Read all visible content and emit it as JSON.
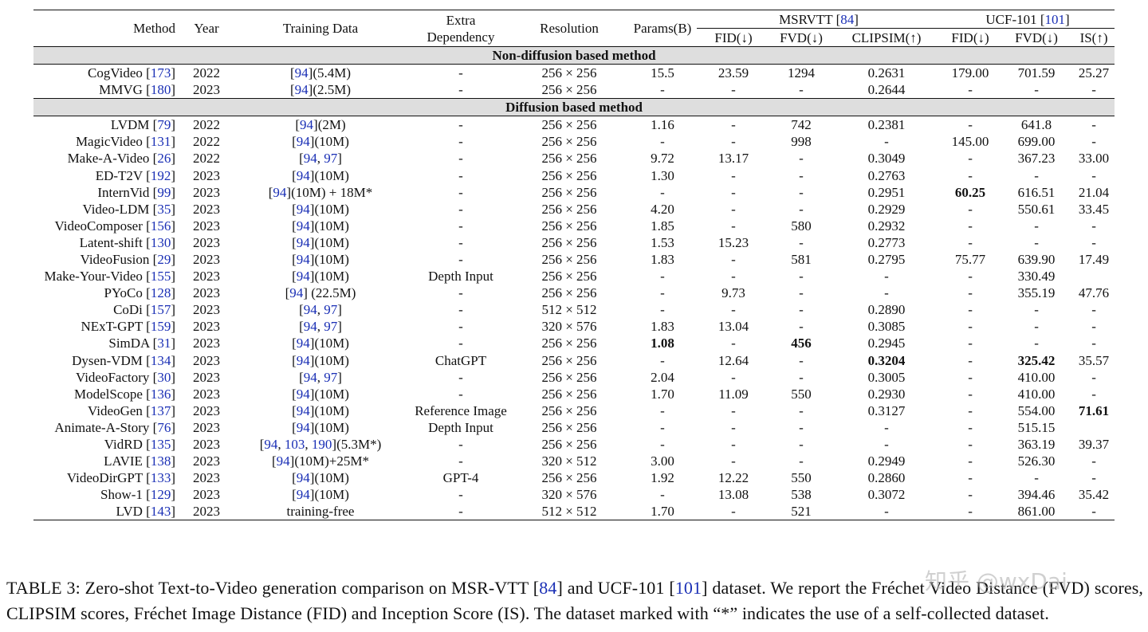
{
  "table": {
    "headers": {
      "method": "Method",
      "year": "Year",
      "training_data": "Training Data",
      "extra_dependency": "Extra Dependency",
      "resolution": "Resolution",
      "params": "Params(B)",
      "msrvtt_group": "MSRVTT",
      "msrvtt_cite": "84",
      "ucf_group": "UCF-101",
      "ucf_cite": "101",
      "fid": "FID(↓)",
      "fvd": "FVD(↓)",
      "clipsim": "CLIPSIM(↑)",
      "ucf_fid": "FID(↓)",
      "ucf_fvd": "FVD(↓)",
      "is": "IS(↑)"
    },
    "sections": [
      {
        "title": "Non-diffusion based method",
        "rows": [
          {
            "name": "CogVideo",
            "cite": "173",
            "year": "2022",
            "data": [
              {
                "t": "94",
                "c": true
              },
              {
                "t": "(5.4M)"
              }
            ],
            "extra": "-",
            "res": "256 × 256",
            "params": "15.5",
            "fid": "23.59",
            "fvd": "1294",
            "clipsim": "0.2631",
            "ufid": "179.00",
            "ufvd": "701.59",
            "is": "25.27"
          },
          {
            "name": "MMVG",
            "cite": "180",
            "year": "2023",
            "data": [
              {
                "t": "94",
                "c": true
              },
              {
                "t": "(2.5M)"
              }
            ],
            "extra": "-",
            "res": "256 × 256",
            "params": "-",
            "fid": "-",
            "fvd": "-",
            "clipsim": "0.2644",
            "ufid": "-",
            "ufvd": "-",
            "is": "-"
          }
        ]
      },
      {
        "title": "Diffusion based method",
        "rows": [
          {
            "name": "LVDM",
            "cite": "79",
            "year": "2022",
            "data": [
              {
                "t": "94",
                "c": true
              },
              {
                "t": "(2M)"
              }
            ],
            "extra": "-",
            "res": "256 × 256",
            "params": "1.16",
            "fid": "-",
            "fvd": "742",
            "clipsim": "0.2381",
            "ufid": "-",
            "ufvd": "641.8",
            "is": "-"
          },
          {
            "name": "MagicVideo",
            "cite": "131",
            "year": "2022",
            "data": [
              {
                "t": "94",
                "c": true
              },
              {
                "t": "(10M)"
              }
            ],
            "extra": "-",
            "res": "256 × 256",
            "params": "-",
            "fid": "-",
            "fvd": "998",
            "clipsim": "-",
            "ufid": "145.00",
            "ufvd": "699.00",
            "is": "-"
          },
          {
            "name": "Make-A-Video",
            "cite": "26",
            "year": "2022",
            "data": [
              {
                "t": "94",
                "c": true
              },
              {
                "t": ", "
              },
              {
                "t": "97",
                "c": true
              }
            ],
            "extra": "-",
            "res": "256 × 256",
            "params": "9.72",
            "fid": "13.17",
            "fvd": "-",
            "clipsim": "0.3049",
            "ufid": "-",
            "ufvd": "367.23",
            "is": "33.00"
          },
          {
            "name": "ED-T2V",
            "cite": "192",
            "year": "2023",
            "data": [
              {
                "t": "94",
                "c": true
              },
              {
                "t": "(10M)"
              }
            ],
            "extra": "-",
            "res": "256 × 256",
            "params": "1.30",
            "fid": "-",
            "fvd": "-",
            "clipsim": "0.2763",
            "ufid": "-",
            "ufvd": "-",
            "is": "-"
          },
          {
            "name": "InternVid",
            "cite": "99",
            "year": "2023",
            "data": [
              {
                "t": "94",
                "c": true
              },
              {
                "t": "(10M) + 18M*"
              }
            ],
            "extra": "-",
            "res": "256 × 256",
            "params": "-",
            "fid": "-",
            "fvd": "-",
            "clipsim": "0.2951",
            "ufid": "60.25",
            "ufid_bold": true,
            "ufvd": "616.51",
            "is": "21.04"
          },
          {
            "name": "Video-LDM",
            "cite": "35",
            "year": "2023",
            "data": [
              {
                "t": "94",
                "c": true
              },
              {
                "t": "(10M)"
              }
            ],
            "extra": "-",
            "res": "256 × 256",
            "params": "4.20",
            "fid": "-",
            "fvd": "-",
            "clipsim": "0.2929",
            "ufid": "-",
            "ufvd": "550.61",
            "is": "33.45"
          },
          {
            "name": "VideoComposer",
            "cite": "156",
            "year": "2023",
            "data": [
              {
                "t": "94",
                "c": true
              },
              {
                "t": "(10M)"
              }
            ],
            "extra": "-",
            "res": "256 × 256",
            "params": "1.85",
            "fid": "-",
            "fvd": "580",
            "clipsim": "0.2932",
            "ufid": "-",
            "ufvd": "-",
            "is": "-"
          },
          {
            "name": "Latent-shift",
            "cite": "130",
            "year": "2023",
            "data": [
              {
                "t": "94",
                "c": true
              },
              {
                "t": "(10M)"
              }
            ],
            "extra": "-",
            "res": "256 × 256",
            "params": "1.53",
            "fid": "15.23",
            "fvd": "-",
            "clipsim": "0.2773",
            "ufid": "-",
            "ufvd": "-",
            "is": "-"
          },
          {
            "name": "VideoFusion",
            "cite": "29",
            "year": "2023",
            "data": [
              {
                "t": "94",
                "c": true
              },
              {
                "t": "(10M)"
              }
            ],
            "extra": "-",
            "res": "256 × 256",
            "params": "1.83",
            "fid": "-",
            "fvd": "581",
            "clipsim": "0.2795",
            "ufid": "75.77",
            "ufvd": "639.90",
            "is": "17.49"
          },
          {
            "name": "Make-Your-Video",
            "cite": "155",
            "year": "2023",
            "data": [
              {
                "t": "94",
                "c": true
              },
              {
                "t": "(10M)"
              }
            ],
            "extra": "Depth Input",
            "res": "256 × 256",
            "params": "-",
            "fid": "-",
            "fvd": "-",
            "clipsim": "-",
            "ufid": "-",
            "ufvd": "330.49",
            "is": ""
          },
          {
            "name": "PYoCo",
            "cite": "128",
            "year": "2023",
            "data": [
              {
                "t": "94",
                "c": true
              },
              {
                "t": " (22.5M)"
              }
            ],
            "extra": "-",
            "res": "256 × 256",
            "params": "-",
            "fid": "9.73",
            "fvd": "-",
            "clipsim": "-",
            "ufid": "-",
            "ufvd": "355.19",
            "is": "47.76"
          },
          {
            "name": "CoDi",
            "cite": "157",
            "year": "2023",
            "data": [
              {
                "t": "94",
                "c": true
              },
              {
                "t": ", "
              },
              {
                "t": "97",
                "c": true
              }
            ],
            "extra": "-",
            "res": "512 × 512",
            "params": "-",
            "fid": "-",
            "fvd": "-",
            "clipsim": "0.2890",
            "ufid": "-",
            "ufvd": "-",
            "is": "-"
          },
          {
            "name": "NExT-GPT",
            "cite": "159",
            "year": "2023",
            "data": [
              {
                "t": "94",
                "c": true
              },
              {
                "t": ", "
              },
              {
                "t": "97",
                "c": true
              }
            ],
            "extra": "-",
            "res": "320 × 576",
            "params": "1.83",
            "fid": "13.04",
            "fvd": "-",
            "clipsim": "0.3085",
            "ufid": "-",
            "ufvd": "-",
            "is": "-"
          },
          {
            "name": "SimDA",
            "cite": "31",
            "year": "2023",
            "data": [
              {
                "t": "94",
                "c": true
              },
              {
                "t": "(10M)"
              }
            ],
            "extra": "-",
            "res": "256 × 256",
            "params": "1.08",
            "params_bold": true,
            "fid": "-",
            "fvd": "456",
            "fvd_bold": true,
            "clipsim": "0.2945",
            "ufid": "-",
            "ufvd": "-",
            "is": "-"
          },
          {
            "name": "Dysen-VDM",
            "cite": "134",
            "year": "2023",
            "data": [
              {
                "t": "94",
                "c": true
              },
              {
                "t": "(10M)"
              }
            ],
            "extra": "ChatGPT",
            "res": "256 × 256",
            "params": "-",
            "fid": "12.64",
            "fvd": "-",
            "clipsim": "0.3204",
            "clipsim_bold": true,
            "ufid": "-",
            "ufvd": "325.42",
            "ufvd_bold": true,
            "is": "35.57"
          },
          {
            "name": "VideoFactory",
            "cite": "30",
            "year": "2023",
            "data": [
              {
                "t": "94",
                "c": true
              },
              {
                "t": ", "
              },
              {
                "t": "97",
                "c": true
              }
            ],
            "extra": "-",
            "res": "256 × 256",
            "params": "2.04",
            "fid": "-",
            "fvd": "-",
            "clipsim": "0.3005",
            "ufid": "-",
            "ufvd": "410.00",
            "is": "-"
          },
          {
            "name": "ModelScope",
            "cite": "136",
            "year": "2023",
            "data": [
              {
                "t": "94",
                "c": true
              },
              {
                "t": "(10M)"
              }
            ],
            "extra": "-",
            "res": "256 × 256",
            "params": "1.70",
            "fid": "11.09",
            "fvd": "550",
            "clipsim": "0.2930",
            "ufid": "-",
            "ufvd": "410.00",
            "is": "-"
          },
          {
            "name": "VideoGen",
            "cite": "137",
            "year": "2023",
            "data": [
              {
                "t": "94",
                "c": true
              },
              {
                "t": "(10M)"
              }
            ],
            "extra": "Reference Image",
            "res": "256 × 256",
            "params": "-",
            "fid": "-",
            "fvd": "-",
            "clipsim": "0.3127",
            "ufid": "-",
            "ufvd": "554.00",
            "is": "71.61",
            "is_bold": true
          },
          {
            "name": "Animate-A-Story",
            "cite": "76",
            "year": "2023",
            "data": [
              {
                "t": "94",
                "c": true
              },
              {
                "t": "(10M)"
              }
            ],
            "extra": "Depth Input",
            "res": "256 × 256",
            "params": "-",
            "fid": "-",
            "fvd": "-",
            "clipsim": "-",
            "ufid": "-",
            "ufvd": "515.15",
            "is": ""
          },
          {
            "name": "VidRD",
            "cite": "135",
            "year": "2023",
            "data": [
              {
                "t": "94",
                "c": true
              },
              {
                "t": ", "
              },
              {
                "t": "103",
                "c": true
              },
              {
                "t": ", "
              },
              {
                "t": "190",
                "c": true
              },
              {
                "t": "](5.3M*)"
              }
            ],
            "extra": "-",
            "res": "256 × 256",
            "params": "-",
            "fid": "-",
            "fvd": "-",
            "clipsim": "-",
            "ufid": "-",
            "ufvd": "363.19",
            "is": "39.37"
          },
          {
            "name": "LAVIE",
            "cite": "138",
            "year": "2023",
            "data": [
              {
                "t": "94",
                "c": true
              },
              {
                "t": "(10M)+25M*"
              }
            ],
            "extra": "-",
            "res": "320 × 512",
            "params": "3.00",
            "fid": "-",
            "fvd": "-",
            "clipsim": "0.2949",
            "ufid": "-",
            "ufvd": "526.30",
            "is": "-"
          },
          {
            "name": "VideoDirGPT",
            "cite": "133",
            "year": "2023",
            "data": [
              {
                "t": "94",
                "c": true
              },
              {
                "t": "(10M)"
              }
            ],
            "extra": "GPT-4",
            "res": "256 × 256",
            "params": "1.92",
            "fid": "12.22",
            "fvd": "550",
            "clipsim": "0.2860",
            "ufid": "-",
            "ufvd": "-",
            "is": "-"
          },
          {
            "name": "Show-1",
            "cite": "129",
            "year": "2023",
            "data": [
              {
                "t": "94",
                "c": true
              },
              {
                "t": "(10M)"
              }
            ],
            "extra": "-",
            "res": "320 × 576",
            "params": "-",
            "fid": "13.08",
            "fvd": "538",
            "clipsim": "0.3072",
            "ufid": "-",
            "ufvd": "394.46",
            "is": "35.42"
          },
          {
            "name": "LVD",
            "cite": "143",
            "year": "2023",
            "data": [
              {
                "t": "training-free",
                "plain": true
              }
            ],
            "extra": "-",
            "res": "512 × 512",
            "params": "1.70",
            "fid": "-",
            "fvd": "521",
            "clipsim": "-",
            "ufid": "-",
            "ufvd": "861.00",
            "is": "-"
          }
        ]
      }
    ]
  },
  "caption": {
    "p1": "TABLE 3: Zero-shot Text-to-Video generation comparison on MSR-VTT [",
    "c1": "84",
    "p2": "] and UCF-101 [",
    "c2": "101",
    "p3": "] dataset. We report the Fréchet Video Distance (FVD) scores, CLIPSIM scores, Fréchet Image Distance (FID) and Inception Score (IS). The dataset marked with “*” indicates the use of a self-collected dataset."
  },
  "watermark": "知乎 @wxDai"
}
